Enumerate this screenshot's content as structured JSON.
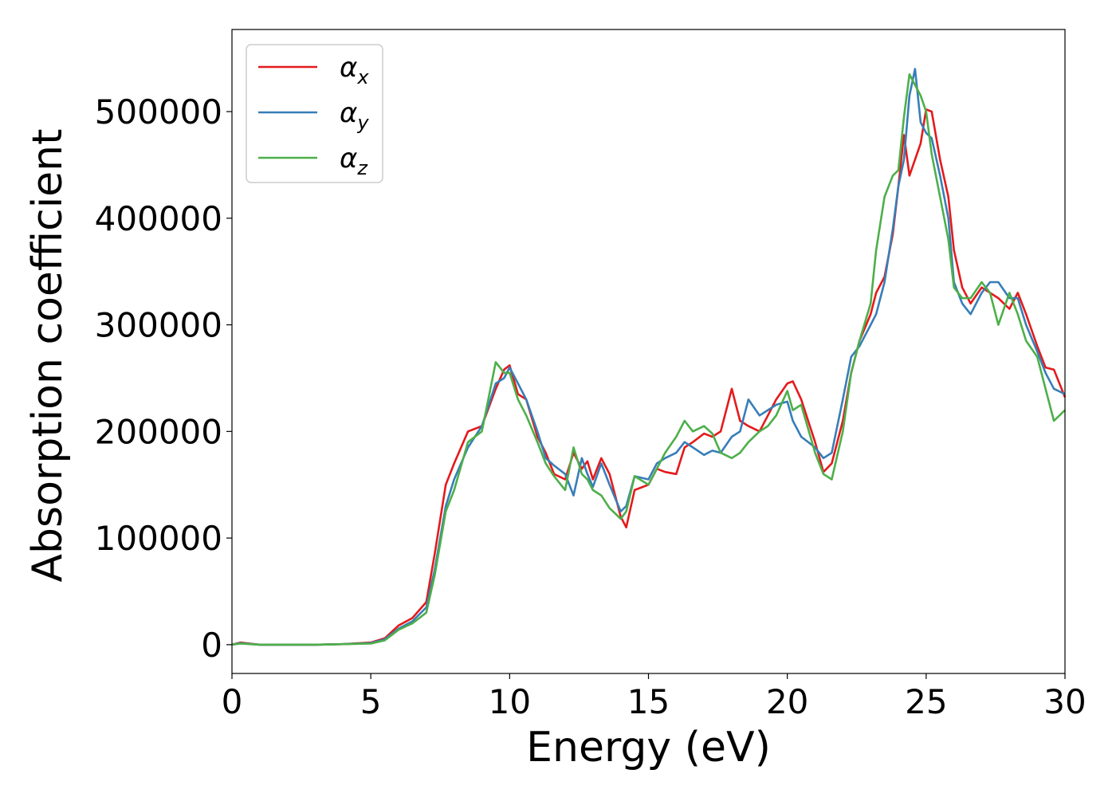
{
  "chart_data": {
    "type": "line",
    "xlabel": "Energy (eV)",
    "ylabel": "Absorption coefficient",
    "xlim": [
      0,
      30
    ],
    "ylim": [
      -27000,
      577000
    ],
    "xticks": [
      0,
      5,
      10,
      15,
      20,
      25,
      30
    ],
    "yticks": [
      0,
      100000,
      200000,
      300000,
      400000,
      500000
    ],
    "grid": false,
    "legend_position": "top-left",
    "series": [
      {
        "name": "α",
        "subscript": "x",
        "color": "#e41a1c",
        "x": [
          0,
          0.3,
          1,
          2,
          3,
          4,
          5,
          5.5,
          6,
          6.5,
          7,
          7.3,
          7.7,
          8,
          8.5,
          9,
          9.5,
          9.8,
          10,
          10.3,
          10.6,
          11,
          11.3,
          11.6,
          12,
          12.3,
          12.6,
          12.8,
          13,
          13.3,
          13.6,
          14,
          14.2,
          14.5,
          15,
          15.3,
          15.6,
          16,
          16.3,
          16.6,
          17,
          17.3,
          17.6,
          18,
          18.3,
          18.6,
          19,
          19.3,
          19.6,
          20,
          20.2,
          20.5,
          21,
          21.3,
          21.6,
          22,
          22.3,
          22.6,
          23,
          23.2,
          23.5,
          23.8,
          24,
          24.2,
          24.4,
          24.6,
          24.8,
          25,
          25.2,
          25.5,
          25.8,
          26,
          26.3,
          26.6,
          27,
          27.3,
          27.6,
          28,
          28.3,
          28.6,
          29,
          29.3,
          29.6,
          30
        ],
        "values": [
          0,
          2000,
          0,
          0,
          0,
          500,
          2000,
          6000,
          18000,
          25000,
          40000,
          85000,
          150000,
          170000,
          200000,
          205000,
          240000,
          258000,
          262000,
          235000,
          230000,
          195000,
          180000,
          160000,
          155000,
          180000,
          165000,
          172000,
          155000,
          175000,
          160000,
          120000,
          110000,
          145000,
          150000,
          165000,
          162000,
          160000,
          185000,
          190000,
          198000,
          195000,
          200000,
          240000,
          210000,
          205000,
          200000,
          215000,
          230000,
          245000,
          247000,
          230000,
          190000,
          162000,
          170000,
          210000,
          255000,
          285000,
          310000,
          330000,
          345000,
          385000,
          430000,
          478000,
          440000,
          455000,
          470000,
          502000,
          500000,
          455000,
          420000,
          370000,
          335000,
          320000,
          335000,
          330000,
          325000,
          315000,
          330000,
          310000,
          280000,
          260000,
          258000,
          232000
        ]
      },
      {
        "name": "α",
        "subscript": "y",
        "color": "#377eb8",
        "x": [
          0,
          0.3,
          1,
          2,
          3,
          4,
          5,
          5.5,
          6,
          6.5,
          7,
          7.3,
          7.7,
          8,
          8.5,
          9,
          9.5,
          9.8,
          10,
          10.3,
          10.6,
          11,
          11.3,
          11.6,
          12,
          12.3,
          12.6,
          12.8,
          13,
          13.3,
          13.6,
          14,
          14.2,
          14.5,
          15,
          15.3,
          15.6,
          16,
          16.3,
          16.6,
          17,
          17.3,
          17.6,
          18,
          18.3,
          18.6,
          19,
          19.3,
          19.6,
          20,
          20.2,
          20.5,
          21,
          21.3,
          21.6,
          22,
          22.3,
          22.6,
          23,
          23.2,
          23.5,
          23.8,
          24,
          24.2,
          24.4,
          24.6,
          24.8,
          25,
          25.2,
          25.5,
          25.8,
          26,
          26.3,
          26.6,
          27,
          27.3,
          27.6,
          28,
          28.3,
          28.6,
          29,
          29.3,
          29.6,
          30
        ],
        "values": [
          0,
          1500,
          0,
          0,
          0,
          500,
          1500,
          5000,
          15000,
          22000,
          35000,
          70000,
          130000,
          155000,
          185000,
          205000,
          245000,
          250000,
          260000,
          245000,
          230000,
          200000,
          175000,
          168000,
          160000,
          140000,
          175000,
          160000,
          148000,
          170000,
          150000,
          125000,
          130000,
          158000,
          155000,
          170000,
          175000,
          180000,
          190000,
          185000,
          178000,
          182000,
          180000,
          195000,
          200000,
          230000,
          215000,
          220000,
          225000,
          228000,
          210000,
          195000,
          185000,
          175000,
          180000,
          230000,
          270000,
          280000,
          300000,
          310000,
          340000,
          390000,
          430000,
          455000,
          515000,
          540000,
          490000,
          480000,
          475000,
          440000,
          400000,
          340000,
          320000,
          310000,
          330000,
          340000,
          340000,
          325000,
          325000,
          300000,
          275000,
          255000,
          240000,
          235000
        ]
      },
      {
        "name": "α",
        "subscript": "z",
        "color": "#4daf4a",
        "x": [
          0,
          0.3,
          1,
          2,
          3,
          4,
          5,
          5.5,
          6,
          6.5,
          7,
          7.3,
          7.7,
          8,
          8.5,
          9,
          9.5,
          9.8,
          10,
          10.3,
          10.6,
          11,
          11.3,
          11.6,
          12,
          12.3,
          12.6,
          12.8,
          13,
          13.3,
          13.6,
          14,
          14.2,
          14.5,
          15,
          15.3,
          15.6,
          16,
          16.3,
          16.6,
          17,
          17.3,
          17.6,
          18,
          18.3,
          18.6,
          19,
          19.3,
          19.6,
          20,
          20.2,
          20.5,
          21,
          21.3,
          21.6,
          22,
          22.3,
          22.6,
          23,
          23.2,
          23.5,
          23.8,
          24,
          24.2,
          24.4,
          24.6,
          24.8,
          25,
          25.2,
          25.5,
          25.8,
          26,
          26.3,
          26.6,
          27,
          27.3,
          27.6,
          28,
          28.3,
          28.6,
          29,
          29.3,
          29.6,
          30
        ],
        "values": [
          0,
          1000,
          0,
          0,
          0,
          500,
          1000,
          4000,
          14000,
          20000,
          30000,
          65000,
          125000,
          145000,
          190000,
          200000,
          265000,
          255000,
          255000,
          230000,
          215000,
          190000,
          170000,
          158000,
          145000,
          185000,
          160000,
          155000,
          145000,
          140000,
          128000,
          118000,
          125000,
          158000,
          150000,
          165000,
          180000,
          195000,
          210000,
          200000,
          205000,
          198000,
          180000,
          175000,
          180000,
          190000,
          200000,
          205000,
          215000,
          238000,
          220000,
          225000,
          180000,
          160000,
          155000,
          200000,
          255000,
          285000,
          320000,
          370000,
          420000,
          440000,
          445000,
          495000,
          535000,
          525000,
          515000,
          500000,
          460000,
          420000,
          380000,
          335000,
          325000,
          325000,
          340000,
          330000,
          300000,
          330000,
          310000,
          285000,
          270000,
          240000,
          210000,
          220000
        ]
      }
    ]
  }
}
